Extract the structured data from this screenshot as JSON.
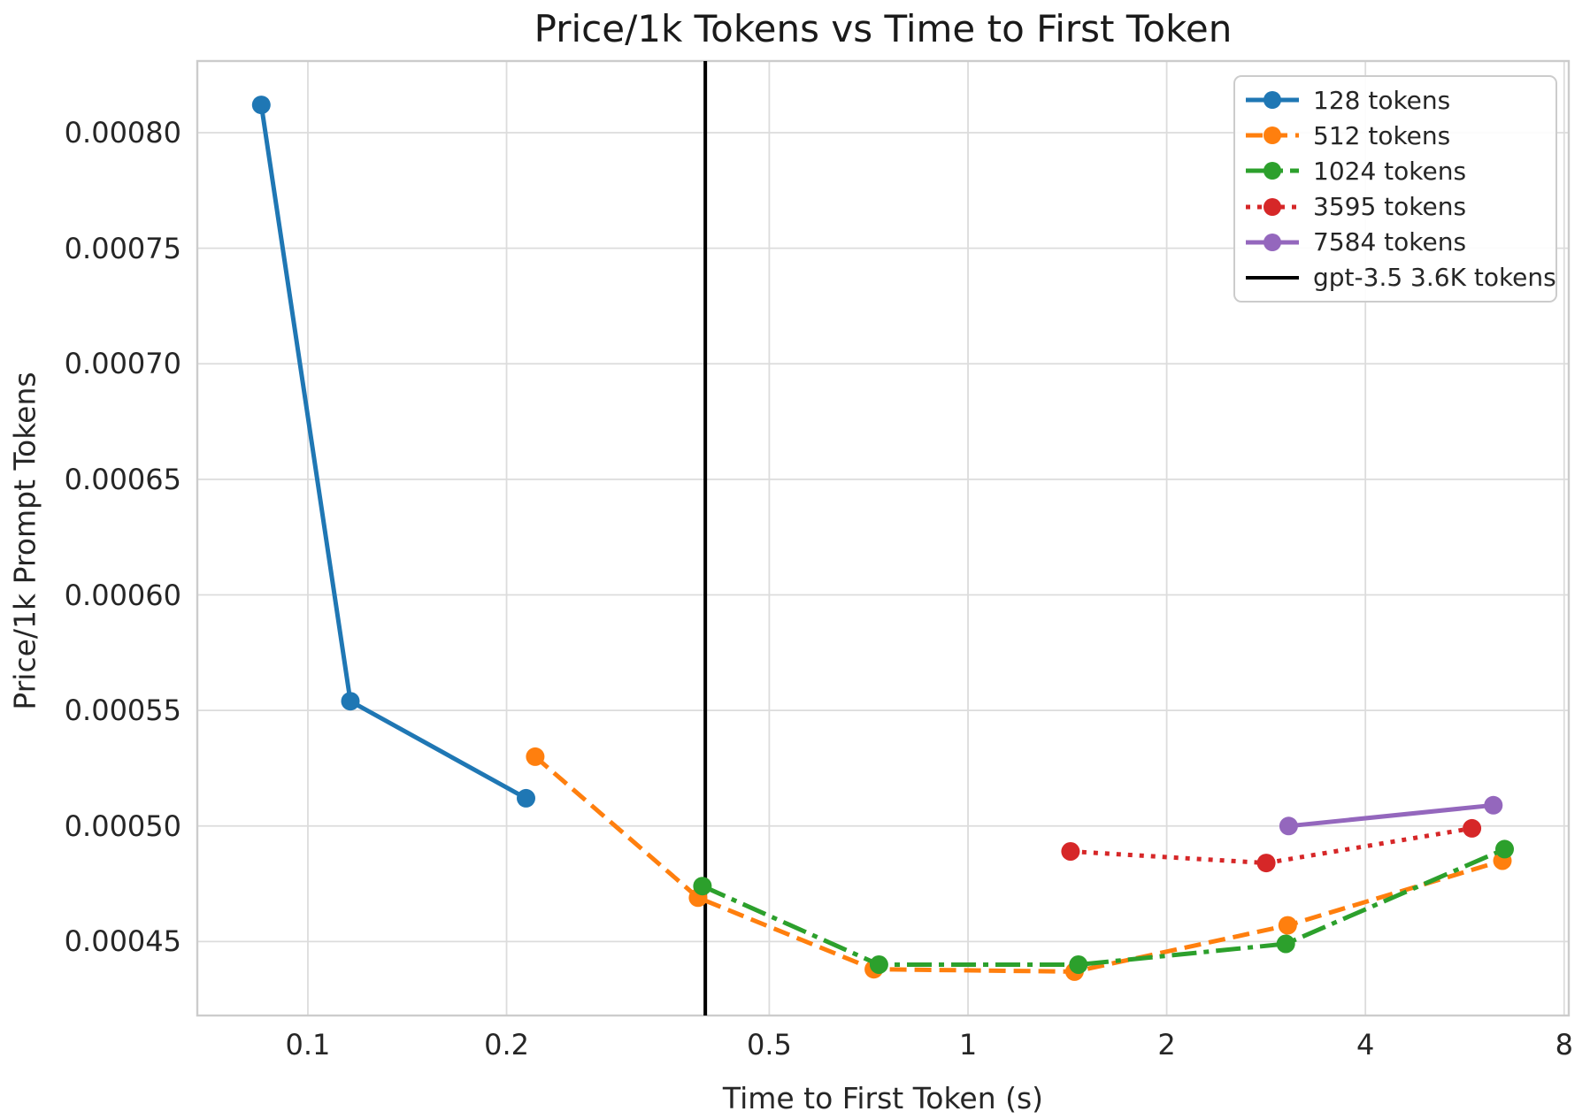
{
  "title": "Price/1k Tokens vs Time to First Token",
  "axes": {
    "x_label": "Time to First Token (s)",
    "y_label": "Price/1k Prompt Tokens"
  },
  "colors": {
    "blue": "#1f77b4",
    "orange": "#ff7f0e",
    "green": "#2ca02c",
    "red": "#d62728",
    "purple": "#9467bd",
    "vline": "#000000",
    "grid": "#dcdcdc",
    "spine": "#cccccc",
    "text": "#262626"
  },
  "legend": {
    "items": [
      {
        "label": "128 tokens",
        "color": "#1f77b4",
        "style": "solid",
        "marker": true
      },
      {
        "label": "512 tokens",
        "color": "#ff7f0e",
        "style": "dashed",
        "marker": true
      },
      {
        "label": "1024 tokens",
        "color": "#2ca02c",
        "style": "dashdot",
        "marker": true
      },
      {
        "label": "3595 tokens",
        "color": "#d62728",
        "style": "dotted",
        "marker": true
      },
      {
        "label": "7584 tokens",
        "color": "#9467bd",
        "style": "solid",
        "marker": true
      },
      {
        "label": "gpt-3.5 3.6K tokens",
        "color": "#000000",
        "style": "solid",
        "marker": false
      }
    ]
  },
  "chart_data": {
    "type": "line",
    "title": "Price/1k Tokens vs Time to First Token",
    "xlabel": "Time to First Token (s)",
    "ylabel": "Price/1k Prompt Tokens",
    "x_scale": "log",
    "y_scale": "linear",
    "xlim": [
      0.068,
      8.13
    ],
    "ylim": [
      0.000418,
      0.000831
    ],
    "grid": true,
    "legend_position": "upper right",
    "x_ticks": [
      0.1,
      0.2,
      0.5,
      1,
      2,
      4,
      8
    ],
    "x_tick_labels": [
      "0.1",
      "0.2",
      "0.5",
      "1",
      "2",
      "4",
      "8"
    ],
    "y_ticks": [
      0.00045,
      0.0005,
      0.00055,
      0.0006,
      0.00065,
      0.0007,
      0.00075,
      0.0008
    ],
    "y_tick_labels": [
      "0.00045",
      "0.00050",
      "0.00055",
      "0.00060",
      "0.00065",
      "0.00070",
      "0.00075",
      "0.00080"
    ],
    "series": [
      {
        "name": "128 tokens",
        "color": "#1f77b4",
        "style": "solid",
        "marker": "circle",
        "points": [
          [
            0.085,
            0.000812
          ],
          [
            0.116,
            0.000554
          ],
          [
            0.214,
            0.000512
          ]
        ]
      },
      {
        "name": "512 tokens",
        "color": "#ff7f0e",
        "style": "dashed",
        "marker": "circle",
        "points": [
          [
            0.221,
            0.00053
          ],
          [
            0.39,
            0.000469
          ],
          [
            0.72,
            0.000438
          ],
          [
            1.45,
            0.000437
          ],
          [
            3.05,
            0.000457
          ],
          [
            6.45,
            0.000485
          ]
        ]
      },
      {
        "name": "1024 tokens",
        "color": "#2ca02c",
        "style": "dashdot",
        "marker": "circle",
        "points": [
          [
            0.396,
            0.000474
          ],
          [
            0.733,
            0.00044
          ],
          [
            1.47,
            0.00044
          ],
          [
            3.03,
            0.000449
          ],
          [
            6.5,
            0.00049
          ]
        ]
      },
      {
        "name": "3595 tokens",
        "color": "#d62728",
        "style": "dotted",
        "marker": "circle",
        "points": [
          [
            1.43,
            0.000489
          ],
          [
            2.83,
            0.000484
          ],
          [
            5.8,
            0.000499
          ]
        ]
      },
      {
        "name": "7584 tokens",
        "color": "#9467bd",
        "style": "solid",
        "marker": "circle",
        "points": [
          [
            3.06,
            0.0005
          ],
          [
            6.25,
            0.000509
          ]
        ]
      }
    ],
    "vline": {
      "label": "gpt-3.5 3.6K tokens",
      "x": 0.4,
      "color": "#000000",
      "style": "solid"
    }
  }
}
